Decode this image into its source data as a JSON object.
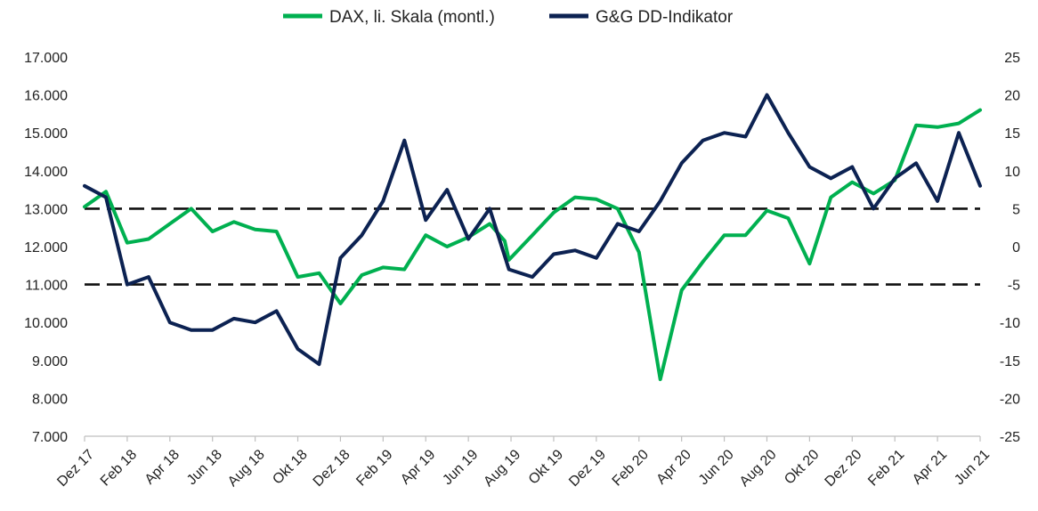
{
  "chart_data": {
    "type": "line",
    "title": "",
    "legend_position": "top-center",
    "grid": false,
    "x_tick_labels": [
      "Dez 17",
      "Feb 18",
      "Apr 18",
      "Jun 18",
      "Aug 18",
      "Okt 18",
      "Dez 18",
      "Feb 19",
      "Apr 19",
      "Jun 19",
      "Aug 19",
      "Okt 19",
      "Dez 19",
      "Feb 20",
      "Apr 20",
      "Jun 20",
      "Aug 20",
      "Okt 20",
      "Dez 20",
      "Feb 21",
      "Apr 21",
      "Jun 21"
    ],
    "y_left": {
      "min": 7000,
      "max": 17000,
      "step": 1000,
      "tick_labels": [
        "7.000",
        "8.000",
        "9.000",
        "10.000",
        "11.000",
        "12.000",
        "13.000",
        "14.000",
        "15.000",
        "16.000",
        "17.000"
      ]
    },
    "y_right": {
      "min": -25,
      "max": 25,
      "step": 5,
      "tick_labels": [
        "-25",
        "-20",
        "-15",
        "-10",
        "-5",
        "0",
        "5",
        "10",
        "15",
        "20",
        "25"
      ]
    },
    "reference_lines_right_axis": [
      5,
      -5
    ],
    "series": [
      {
        "name": "DAX, li. Skala (montl.)",
        "axis": "left",
        "color": "#00b050",
        "points": [
          [
            0,
            13050
          ],
          [
            0.5,
            13450
          ],
          [
            1,
            12100
          ],
          [
            1.5,
            12200
          ],
          [
            2,
            12600
          ],
          [
            2.5,
            13000
          ],
          [
            3,
            12400
          ],
          [
            3.5,
            12650
          ],
          [
            4,
            12450
          ],
          [
            4.5,
            12400
          ],
          [
            5,
            11200
          ],
          [
            5.5,
            11300
          ],
          [
            6,
            10500
          ],
          [
            6.5,
            11250
          ],
          [
            7,
            11450
          ],
          [
            7.5,
            11400
          ],
          [
            8,
            12300
          ],
          [
            8.5,
            12000
          ],
          [
            9,
            12250
          ],
          [
            9.5,
            12600
          ],
          [
            9.85,
            12150
          ],
          [
            9.95,
            11650
          ],
          [
            10.5,
            12300
          ],
          [
            11,
            12900
          ],
          [
            11.5,
            13300
          ],
          [
            12,
            13250
          ],
          [
            12.5,
            13000
          ],
          [
            13,
            11850
          ],
          [
            13.5,
            8500
          ],
          [
            14,
            10850
          ],
          [
            14.5,
            11600
          ],
          [
            15,
            12300
          ],
          [
            15.5,
            12300
          ],
          [
            16,
            12950
          ],
          [
            16.5,
            12750
          ],
          [
            17,
            11550
          ],
          [
            17.5,
            13300
          ],
          [
            18,
            13700
          ],
          [
            18.5,
            13400
          ],
          [
            19,
            13750
          ],
          [
            19.5,
            15200
          ],
          [
            20,
            15150
          ],
          [
            20.5,
            15250
          ],
          [
            21,
            15600
          ]
        ]
      },
      {
        "name": "G&G DD-Indikator",
        "axis": "right",
        "color": "#0c2252",
        "points": [
          [
            0,
            8
          ],
          [
            0.5,
            6.5
          ],
          [
            1,
            -5
          ],
          [
            1.5,
            -4
          ],
          [
            2,
            -10
          ],
          [
            2.5,
            -11
          ],
          [
            3,
            -11
          ],
          [
            3.5,
            -9.5
          ],
          [
            4,
            -10
          ],
          [
            4.5,
            -8.5
          ],
          [
            5,
            -13.5
          ],
          [
            5.5,
            -15.5
          ],
          [
            6,
            -1.5
          ],
          [
            6.5,
            1.5
          ],
          [
            7,
            6
          ],
          [
            7.5,
            14
          ],
          [
            8,
            3.5
          ],
          [
            8.5,
            7.5
          ],
          [
            9,
            1
          ],
          [
            9.5,
            5
          ],
          [
            9.95,
            -3
          ],
          [
            10.5,
            -4
          ],
          [
            11,
            -1
          ],
          [
            11.5,
            -0.5
          ],
          [
            12,
            -1.5
          ],
          [
            12.5,
            3
          ],
          [
            13,
            2
          ],
          [
            13.5,
            6
          ],
          [
            14,
            11
          ],
          [
            14.5,
            14
          ],
          [
            15,
            15
          ],
          [
            15.5,
            14.5
          ],
          [
            16,
            20
          ],
          [
            16.5,
            15
          ],
          [
            17,
            10.5
          ],
          [
            17.5,
            9
          ],
          [
            18,
            10.5
          ],
          [
            18.5,
            5
          ],
          [
            19,
            9
          ],
          [
            19.5,
            11
          ],
          [
            20,
            6
          ],
          [
            20.5,
            15
          ],
          [
            21,
            8
          ]
        ]
      }
    ]
  }
}
